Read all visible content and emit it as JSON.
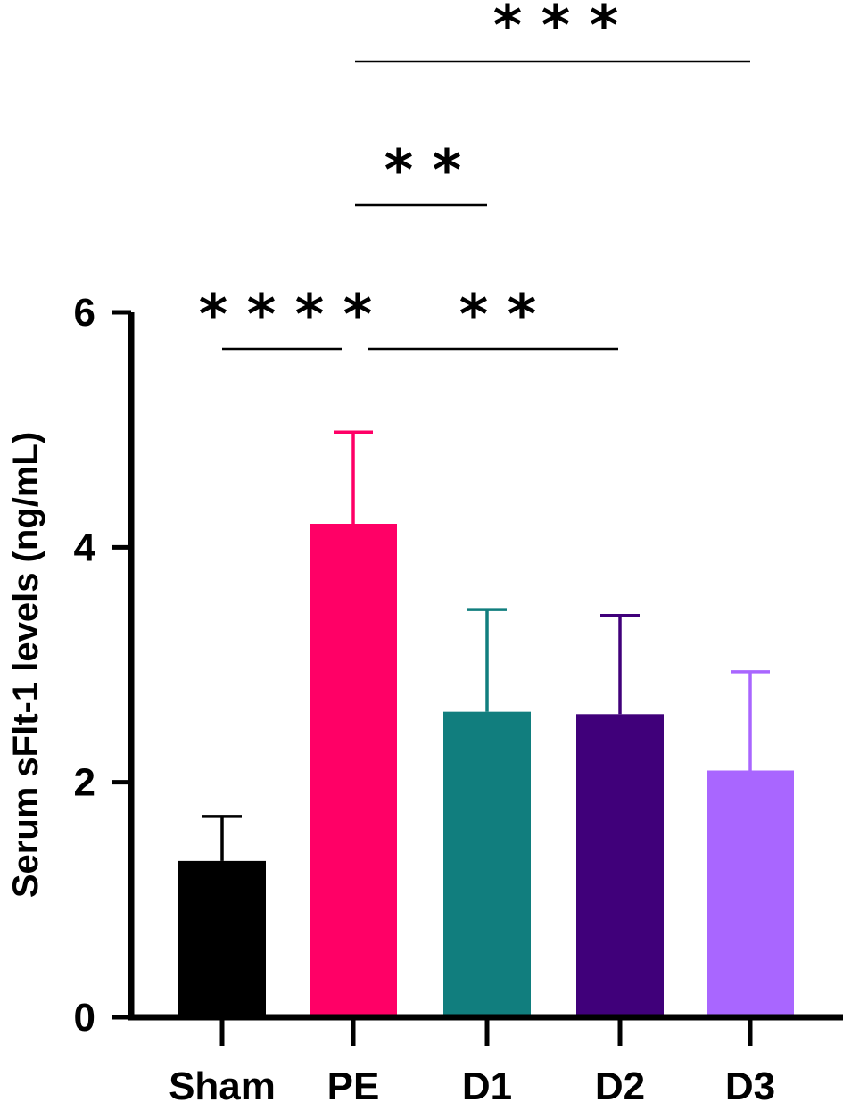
{
  "chart_data": {
    "type": "bar",
    "categories": [
      "Sham",
      "PE",
      "D1",
      "D2",
      "D3"
    ],
    "values": [
      1.33,
      4.2,
      2.6,
      2.58,
      2.1
    ],
    "errors": [
      0.38,
      0.78,
      0.87,
      0.84,
      0.84
    ],
    "colors": [
      "#000000",
      "#ff0066",
      "#117e7e",
      "#40007a",
      "#a966ff"
    ],
    "ylabel": "Serum sFlt-1 levels (ng/mL)",
    "xlabel": "",
    "ylim": [
      0,
      6
    ],
    "yticks": [
      0,
      2,
      4,
      6
    ],
    "grid": false,
    "significance": [
      {
        "from": "Sham",
        "to": "PE",
        "label": "* * * *"
      },
      {
        "from": "PE",
        "to": "D2",
        "label": "* *"
      },
      {
        "from": "PE",
        "to": "D1",
        "label": "* *"
      },
      {
        "from": "PE",
        "to": "D3",
        "label": "* * *"
      }
    ]
  }
}
